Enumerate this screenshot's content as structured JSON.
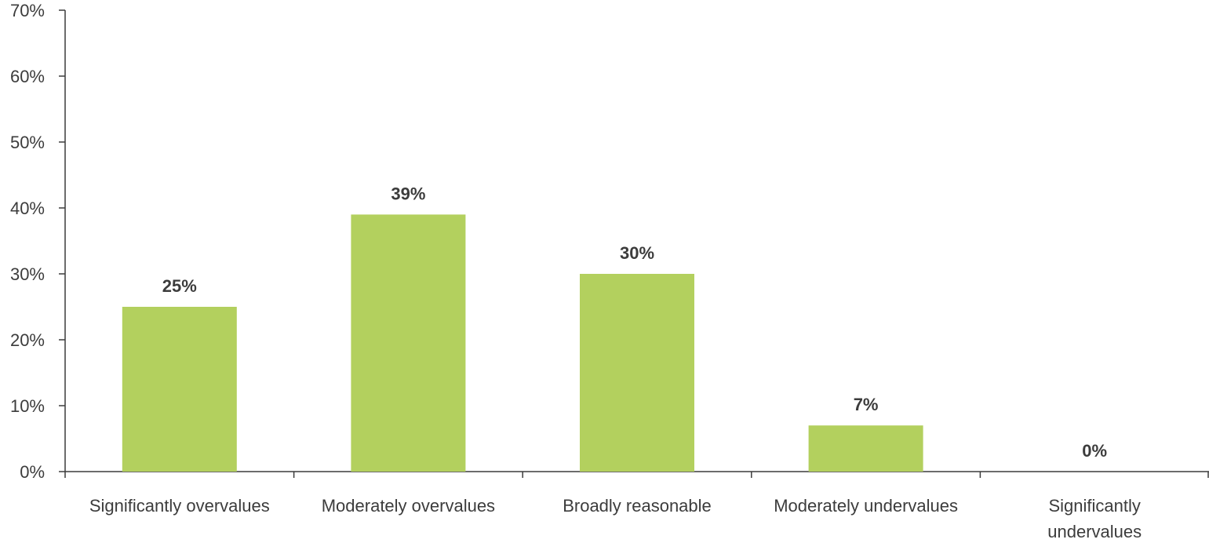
{
  "chart_data": {
    "type": "bar",
    "categories": [
      [
        "Significantly overvalues"
      ],
      [
        "Moderately overvalues"
      ],
      [
        "Broadly reasonable"
      ],
      [
        "Moderately undervalues"
      ],
      [
        "Significantly",
        "undervalues"
      ]
    ],
    "values": [
      25,
      39,
      30,
      7,
      0
    ],
    "data_labels": [
      "25%",
      "39%",
      "30%",
      "7%",
      "0%"
    ],
    "ylim": [
      0,
      70
    ],
    "yticks": [
      0,
      10,
      20,
      30,
      40,
      50,
      60,
      70
    ],
    "ytick_labels": [
      "0%",
      "10%",
      "20%",
      "30%",
      "40%",
      "50%",
      "60%",
      "70%"
    ],
    "grid": false,
    "bar_color": "#b3d05e",
    "axis_color": "#3c3c3c",
    "text_color": "#3c3c3c"
  }
}
